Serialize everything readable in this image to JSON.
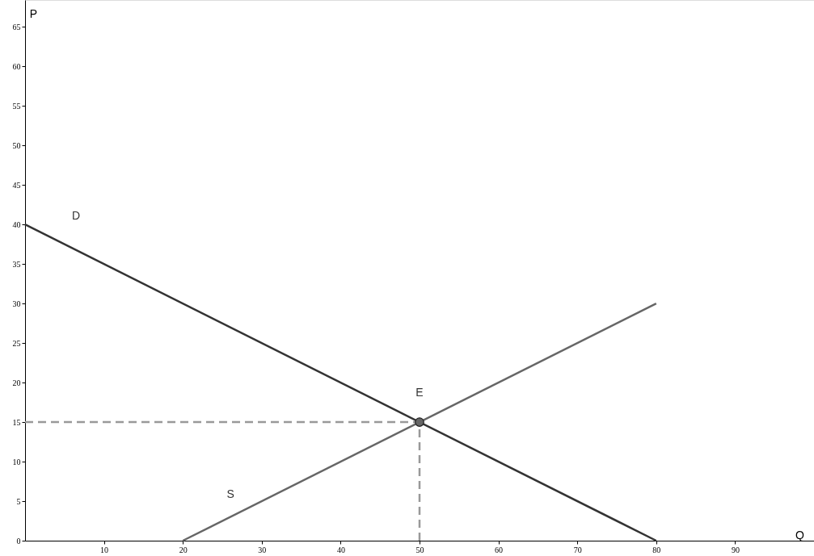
{
  "chart_data": {
    "type": "line",
    "xlabel": "Q",
    "ylabel": "P",
    "xlim": [
      0,
      100
    ],
    "ylim": [
      0,
      68.4
    ],
    "xticks": [
      10,
      20,
      30,
      40,
      50,
      60,
      70,
      80,
      90
    ],
    "yticks": [
      0,
      5,
      10,
      15,
      20,
      25,
      30,
      35,
      40,
      45,
      50,
      55,
      60,
      65
    ],
    "grid": false,
    "series": [
      {
        "name": "D",
        "color": "#333333",
        "x": [
          0,
          80
        ],
        "values": [
          40,
          0
        ],
        "line_style": "solid",
        "marker": "none"
      },
      {
        "name": "S",
        "color": "#666666",
        "x": [
          20,
          80
        ],
        "values": [
          0,
          30
        ],
        "line_style": "solid",
        "marker": "none"
      },
      {
        "color": "#999999",
        "x": [
          0,
          50
        ],
        "values": [
          15,
          15
        ],
        "line_style": "dashed",
        "marker": "none"
      },
      {
        "color": "#999999",
        "x": [
          50,
          50
        ],
        "values": [
          0,
          15
        ],
        "line_style": "dashed",
        "marker": "none"
      },
      {
        "type": "scatter",
        "name": "E",
        "color": "#666666",
        "x": [
          50
        ],
        "values": [
          15
        ],
        "marker": "circle"
      }
    ]
  }
}
